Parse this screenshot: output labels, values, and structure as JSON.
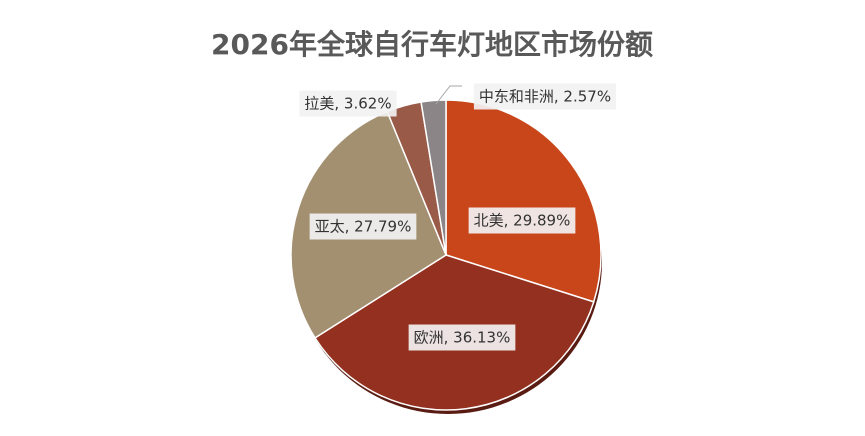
{
  "chart_data": {
    "type": "pie",
    "title": "2026年全球自行车灯地区市场份额",
    "categories": [
      "北美",
      "欧洲",
      "亚太",
      "拉美",
      "中东和非洲"
    ],
    "values": [
      29.89,
      36.13,
      27.79,
      3.62,
      2.57
    ],
    "value_labels": [
      "北美, 29.89%",
      "欧洲, 36.13%",
      "亚太, 27.79%",
      "拉美, 3.62%",
      "中东和非洲, 2.57%"
    ],
    "colors": [
      "#c9461b",
      "#93301f",
      "#a39070",
      "#9a5a48",
      "#8c8587"
    ]
  }
}
